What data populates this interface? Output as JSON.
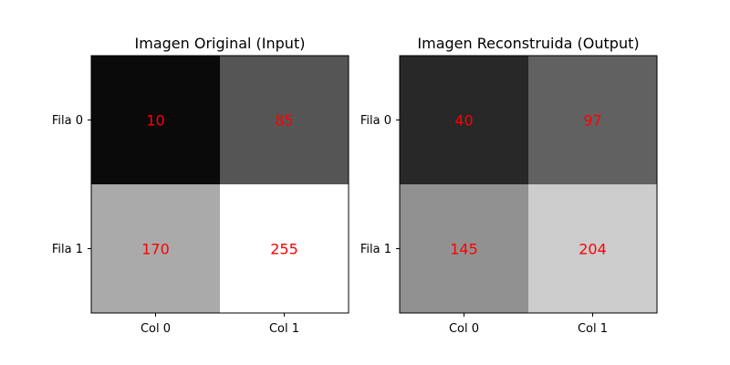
{
  "chart_data": [
    {
      "type": "heatmap",
      "title": "Imagen Original (Input)",
      "colormap": "gray",
      "vmin": 0,
      "vmax": 255,
      "row_labels": [
        "Fila 0",
        "Fila 1"
      ],
      "col_labels": [
        "Col 0",
        "Col 1"
      ],
      "values": [
        [
          10,
          85
        ],
        [
          170,
          255
        ]
      ],
      "annotation_color": "#ff0000"
    },
    {
      "type": "heatmap",
      "title": "Imagen Reconstruida (Output)",
      "colormap": "gray",
      "vmin": 0,
      "vmax": 255,
      "row_labels": [
        "Fila 0",
        "Fila 1"
      ],
      "col_labels": [
        "Col 0",
        "Col 1"
      ],
      "values": [
        [
          40,
          97
        ],
        [
          145,
          204
        ]
      ],
      "annotation_color": "#ff0000"
    }
  ]
}
